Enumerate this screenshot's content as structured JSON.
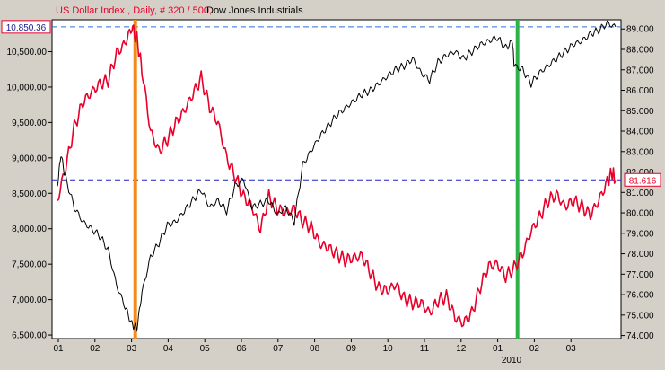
{
  "chart_data": {
    "type": "line",
    "title_parts": {
      "series_a": "US Dollar Index , Daily, # 320 / 500,",
      "series_b": "Dow Jones Industrials"
    },
    "x_ticks": [
      "01",
      "02",
      "03",
      "04",
      "05",
      "06",
      "07",
      "08",
      "09",
      "10",
      "11",
      "12",
      "01",
      "02",
      "03"
    ],
    "x_year_label": "2010",
    "left_axis": {
      "ticks": [
        "10,500.00",
        "10,000.00",
        "9,500.00",
        "9,000.00",
        "8,500.00",
        "8,000.00",
        "7,500.00",
        "7,000.00",
        "6,500.00"
      ],
      "tick_values": [
        10500,
        10000,
        9500,
        9000,
        8500,
        8000,
        7500,
        7000,
        6500
      ],
      "range": [
        6450,
        10950
      ],
      "current_value_label": "10,850.36",
      "current_value": 10850.36
    },
    "right_axis": {
      "ticks": [
        "89.000",
        "88.000",
        "87.000",
        "86.000",
        "85.000",
        "84.000",
        "83.000",
        "82.000",
        "81.000",
        "80.000",
        "79.000",
        "78.000",
        "77.000",
        "76.000",
        "75.000",
        "74.000"
      ],
      "tick_values": [
        89,
        88,
        87,
        86,
        85,
        84,
        83,
        82,
        81,
        80,
        79,
        78,
        77,
        76,
        75,
        74
      ],
      "range": [
        73.85,
        89.45
      ],
      "current_value_label": "81.616",
      "current_value": 81.616
    },
    "series": [
      {
        "name": "US Dollar Index",
        "axis": "right",
        "color": "#e8002a",
        "points": [
          [
            0.0,
            80.6
          ],
          [
            0.25,
            82.3
          ],
          [
            0.5,
            84.2
          ],
          [
            0.75,
            85.4
          ],
          [
            1.0,
            85.9
          ],
          [
            1.25,
            86.3
          ],
          [
            1.5,
            86.5
          ],
          [
            1.75,
            87.8
          ],
          [
            2.0,
            88.3
          ],
          [
            2.2,
            89.1
          ],
          [
            2.35,
            88.5
          ],
          [
            2.5,
            87.0
          ],
          [
            2.75,
            84.0
          ],
          [
            3.0,
            83.0
          ],
          [
            3.25,
            83.6
          ],
          [
            3.5,
            84.4
          ],
          [
            3.75,
            85.0
          ],
          [
            4.0,
            85.8
          ],
          [
            4.25,
            86.6
          ],
          [
            4.5,
            85.2
          ],
          [
            4.75,
            84.4
          ],
          [
            5.0,
            82.7
          ],
          [
            5.25,
            81.8
          ],
          [
            5.5,
            80.8
          ],
          [
            5.75,
            80.3
          ],
          [
            6.0,
            79.2
          ],
          [
            6.25,
            80.8
          ],
          [
            6.5,
            80.2
          ],
          [
            6.75,
            80.0
          ],
          [
            7.0,
            80.2
          ],
          [
            7.25,
            79.6
          ],
          [
            7.5,
            79.3
          ],
          [
            7.75,
            78.5
          ],
          [
            8.0,
            78.3
          ],
          [
            8.25,
            78.0
          ],
          [
            8.5,
            77.7
          ],
          [
            8.75,
            77.8
          ],
          [
            9.0,
            77.9
          ],
          [
            9.25,
            77.1
          ],
          [
            9.5,
            76.3
          ],
          [
            9.75,
            76.2
          ],
          [
            10.0,
            76.5
          ],
          [
            10.25,
            75.8
          ],
          [
            10.5,
            75.6
          ],
          [
            10.75,
            75.6
          ],
          [
            11.0,
            75.1
          ],
          [
            11.25,
            75.7
          ],
          [
            11.5,
            75.9
          ],
          [
            11.75,
            74.9
          ],
          [
            12.0,
            74.6
          ],
          [
            12.25,
            75.1
          ],
          [
            12.5,
            76.4
          ],
          [
            12.75,
            77.4
          ],
          [
            13.0,
            77.5
          ],
          [
            13.25,
            76.9
          ],
          [
            13.5,
            77.3
          ],
          [
            13.75,
            78.0
          ],
          [
            14.0,
            79.1
          ],
          [
            14.25,
            79.8
          ],
          [
            14.5,
            80.6
          ],
          [
            14.75,
            80.9
          ],
          [
            15.0,
            80.3
          ],
          [
            15.25,
            80.6
          ],
          [
            15.5,
            80.3
          ],
          [
            15.75,
            79.9
          ],
          [
            16.0,
            80.6
          ],
          [
            16.25,
            81.5
          ],
          [
            16.4,
            82.0
          ],
          [
            16.5,
            81.6
          ]
        ]
      },
      {
        "name": "Dow Jones Industrials",
        "axis": "left",
        "color": "#000000",
        "points": [
          [
            0.0,
            8600
          ],
          [
            0.1,
            9050
          ],
          [
            0.25,
            8700
          ],
          [
            0.5,
            8300
          ],
          [
            0.75,
            8100
          ],
          [
            1.0,
            8000
          ],
          [
            1.25,
            7900
          ],
          [
            1.5,
            7700
          ],
          [
            1.75,
            7200
          ],
          [
            2.0,
            6900
          ],
          [
            2.2,
            6650
          ],
          [
            2.35,
            6600
          ],
          [
            2.5,
            7100
          ],
          [
            2.75,
            7600
          ],
          [
            3.0,
            7800
          ],
          [
            3.25,
            8050
          ],
          [
            3.5,
            8100
          ],
          [
            3.75,
            8250
          ],
          [
            4.0,
            8400
          ],
          [
            4.25,
            8550
          ],
          [
            4.5,
            8300
          ],
          [
            4.75,
            8400
          ],
          [
            5.0,
            8250
          ],
          [
            5.25,
            8600
          ],
          [
            5.5,
            8700
          ],
          [
            5.75,
            8300
          ],
          [
            6.0,
            8350
          ],
          [
            6.25,
            8400
          ],
          [
            6.5,
            8200
          ],
          [
            6.75,
            8300
          ],
          [
            7.0,
            8100
          ],
          [
            7.25,
            8900
          ],
          [
            7.5,
            9100
          ],
          [
            7.75,
            9300
          ],
          [
            8.0,
            9450
          ],
          [
            8.25,
            9600
          ],
          [
            8.5,
            9700
          ],
          [
            8.75,
            9800
          ],
          [
            9.0,
            9900
          ],
          [
            9.25,
            9950
          ],
          [
            9.5,
            10050
          ],
          [
            9.75,
            10150
          ],
          [
            10.0,
            10250
          ],
          [
            10.25,
            10300
          ],
          [
            10.5,
            10400
          ],
          [
            10.75,
            10200
          ],
          [
            11.0,
            10100
          ],
          [
            11.25,
            10350
          ],
          [
            11.5,
            10450
          ],
          [
            11.75,
            10500
          ],
          [
            12.0,
            10400
          ],
          [
            12.25,
            10500
          ],
          [
            12.5,
            10600
          ],
          [
            12.75,
            10650
          ],
          [
            13.0,
            10700
          ],
          [
            13.25,
            10550
          ],
          [
            13.45,
            10650
          ],
          [
            13.5,
            10300
          ],
          [
            13.75,
            10250
          ],
          [
            14.0,
            10050
          ],
          [
            14.25,
            10200
          ],
          [
            14.5,
            10300
          ],
          [
            14.75,
            10400
          ],
          [
            15.0,
            10500
          ],
          [
            15.25,
            10600
          ],
          [
            15.5,
            10650
          ],
          [
            15.75,
            10750
          ],
          [
            16.0,
            10800
          ],
          [
            16.25,
            10900
          ],
          [
            16.5,
            10850
          ]
        ]
      }
    ],
    "markers": [
      {
        "color": "#f28a1c",
        "x": 2.3,
        "label": ""
      },
      {
        "color": "#2db34a",
        "x": 13.6,
        "label": ""
      }
    ],
    "reference_lines": [
      {
        "color": "#2f6fd6",
        "value": 10850.36,
        "axis": "left",
        "style": "dashed"
      },
      {
        "color": "#2020c0",
        "value": 81.616,
        "axis": "right",
        "style": "dashed"
      }
    ],
    "grid": false
  }
}
